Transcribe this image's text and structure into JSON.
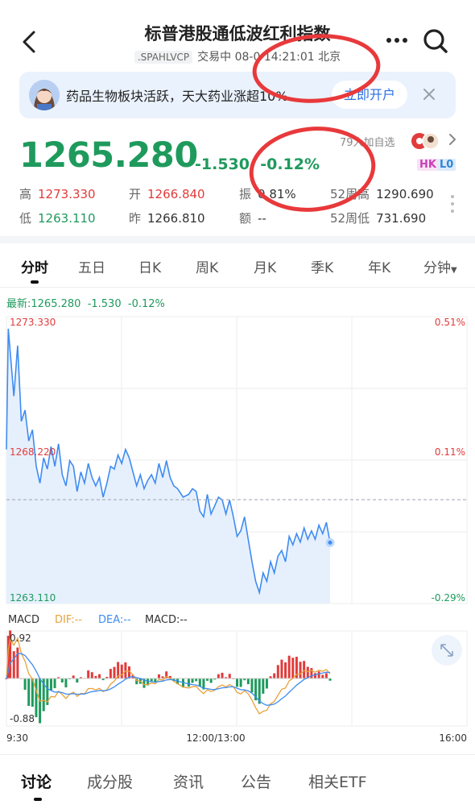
{
  "header": {
    "title": "标普港股通低波红利指数",
    "code": ".SPAHLVCP",
    "status": "交易中",
    "datetime": "08-0",
    "time": "14:21:01",
    "city": "北京"
  },
  "banner": {
    "text": "药品生物板块活跃，天大药业涨超10%",
    "button": "立即开户"
  },
  "quote": {
    "price": "1265.280",
    "change": "-1.530",
    "change_pct": "-0.12%",
    "follow_text": "79人加自选",
    "badge_hk": "HK",
    "badge_l0": "L0",
    "stats": {
      "high_label": "高",
      "high": "1273.330",
      "open_label": "开",
      "open": "1266.840",
      "amp_label": "振",
      "amp": "0.81%",
      "w52h_label": "52周高",
      "w52h": "1290.690",
      "low_label": "低",
      "low": "1263.110",
      "prev_label": "昨",
      "prev": "1266.810",
      "vol_label": "额",
      "vol": "--",
      "w52l_label": "52周低",
      "w52l": "731.690"
    }
  },
  "tabs": [
    "分时",
    "五日",
    "日K",
    "周K",
    "月K",
    "季K",
    "年K",
    "分钟"
  ],
  "latest_line": {
    "label": "最新:",
    "price": "1265.280",
    "change": "-1.530",
    "pct": "-0.12%"
  },
  "chart_data": {
    "type": "line",
    "title": "",
    "y_left_labels": [
      "1273.330",
      "1268.220",
      "1263.110"
    ],
    "y_right_labels": [
      "0.51%",
      "0.11%",
      "-0.29%"
    ],
    "x_labels": [
      "9:30",
      "12:00/13:00",
      "16:00"
    ],
    "prev_close": 1266.81,
    "ylim": [
      1263.11,
      1273.33
    ],
    "series": [
      {
        "name": "",
        "x_frac": [
          0,
          0.01,
          0.02,
          0.04,
          0.06,
          0.08,
          0.1,
          0.12,
          0.14,
          0.16,
          0.18,
          0.2,
          0.22,
          0.24,
          0.26,
          0.28,
          0.3,
          0.32,
          0.34,
          0.36,
          0.38,
          0.4,
          0.42,
          0.44,
          0.46,
          0.48,
          0.5,
          0.52,
          0.54,
          0.56,
          0.58,
          0.6,
          0.62,
          0.64,
          0.66,
          0.68,
          0.7,
          0.72,
          0.74,
          0.76,
          0.78,
          0.8,
          0.82,
          0.84,
          0.86,
          0.88,
          0.9,
          0.92,
          0.95,
          0.98,
          1.0,
          1.02,
          1.04,
          1.06,
          1.08,
          1.1,
          1.12,
          1.14,
          1.16,
          1.18,
          1.2,
          1.22,
          1.24,
          1.26,
          1.28,
          1.3,
          1.32,
          1.34,
          1.36,
          1.38,
          1.4,
          1.42,
          1.44,
          1.46,
          1.48,
          1.5,
          1.52,
          1.54,
          1.56,
          1.58,
          1.6,
          1.62,
          1.64,
          1.66,
          1.68,
          1.7,
          1.72,
          1.74
        ],
        "values": [
          1268.6,
          1272.9,
          1272.1,
          1270.5,
          1272.3,
          1269.6,
          1270.0,
          1268.9,
          1269.3,
          1268.0,
          1267.4,
          1268.3,
          1267.9,
          1268.7,
          1268.0,
          1268.8,
          1267.7,
          1267.3,
          1268.2,
          1268.0,
          1267.1,
          1267.8,
          1267.4,
          1268.1,
          1267.6,
          1267.3,
          1267.6,
          1266.9,
          1267.4,
          1268.0,
          1267.9,
          1268.4,
          1268.1,
          1268.6,
          1268.3,
          1267.8,
          1267.3,
          1267.7,
          1267.2,
          1267.5,
          1267.7,
          1267.4,
          1268.1,
          1267.6,
          1268.2,
          1267.6,
          1267.3,
          1267.2,
          1266.9,
          1267.0,
          1267.2,
          1267.1,
          1266.4,
          1266.2,
          1267.0,
          1266.3,
          1266.6,
          1266.9,
          1266.8,
          1266.3,
          1266.8,
          1266.2,
          1265.5,
          1265.7,
          1266.2,
          1265.4,
          1264.6,
          1263.9,
          1263.5,
          1264.2,
          1263.9,
          1264.6,
          1264.2,
          1264.8,
          1265.0,
          1264.6,
          1265.5,
          1265.2,
          1265.6,
          1265.3,
          1265.8,
          1265.4,
          1265.7,
          1265.4,
          1265.9,
          1265.6,
          1266.0,
          1265.28
        ]
      }
    ]
  },
  "macd": {
    "label": "MACD",
    "dif_label": "DIF:--",
    "dea_label": "DEA:--",
    "macd_label": "MACD:--",
    "top": "0.92",
    "bottom": "-0.88"
  },
  "bottom_tabs": [
    "讨论",
    "成分股",
    "资讯",
    "公告",
    "相关ETF"
  ],
  "colors": {
    "up": "#e23b3b",
    "down": "#1f9a5d",
    "line": "#3f8cf0",
    "accent": "#2b6fe0"
  }
}
